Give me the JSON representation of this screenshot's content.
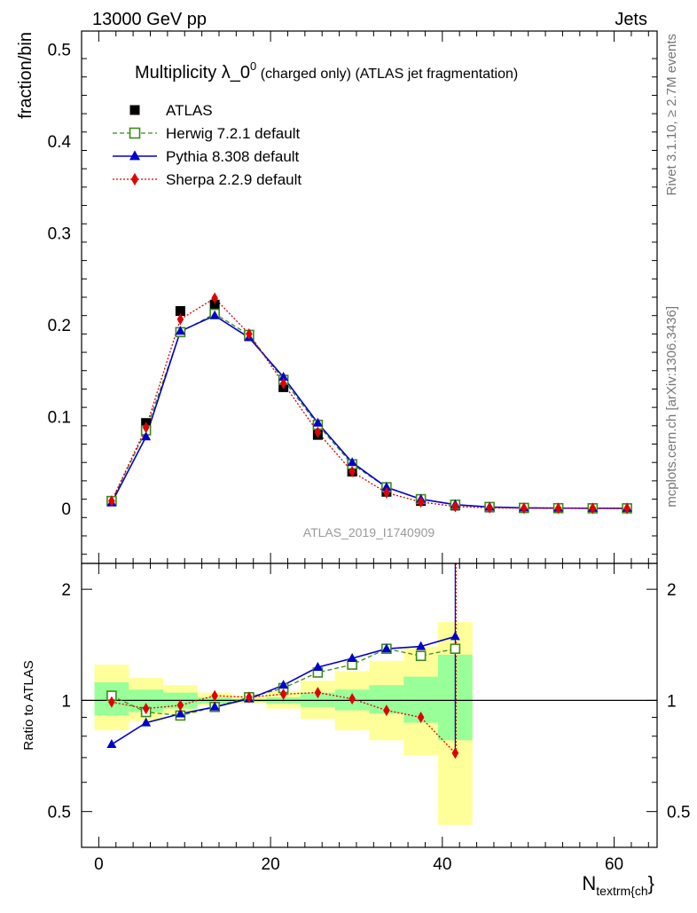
{
  "header": {
    "left": "13000 GeV pp",
    "right": "Jets"
  },
  "title": {
    "main": "Multiplicity λ_0",
    "sup": "0",
    "rest": " (charged only) (ATLAS jet fragmentation)"
  },
  "side_labels": {
    "rivet": "Rivet 3.1.10, ≥ 2.7M events",
    "mcplots": "mcplots.cern.ch [arXiv:1306.3436]"
  },
  "watermark": "ATLAS_2019_I1740909",
  "colors": {
    "atlas": "#000000",
    "herwig": "#3a8a1a",
    "pythia": "#0000cc",
    "sherpa": "#e00000",
    "band_inner": "#99ff99",
    "band_outer": "#ffff99"
  },
  "chart_data": {
    "type": "line",
    "xlabel_main": "N",
    "xlabel_sub": "textrm{ch",
    "xlabel_close": "}",
    "ylabel": "fraction/bin",
    "ratio_ylabel": "Ratio to ATLAS",
    "xlim": [
      -2,
      65
    ],
    "ylim": [
      -0.06,
      0.52
    ],
    "ratio_ylim": [
      0.4,
      2.35
    ],
    "x_ticks": [
      "0",
      "20",
      "40",
      "60"
    ],
    "y_ticks": [
      "0",
      "0.1",
      "0.2",
      "0.3",
      "0.4",
      "0.5"
    ],
    "ratio_ticks": [
      "0.5",
      "1",
      "2"
    ],
    "legend": [
      "ATLAS",
      "Herwig 7.2.1 default",
      "Pythia 8.308 default",
      "Sherpa 2.2.9 default"
    ],
    "bins": [
      [
        -0.5,
        3.5
      ],
      [
        3.5,
        7.5
      ],
      [
        7.5,
        11.5
      ],
      [
        11.5,
        15.5
      ],
      [
        15.5,
        19.5
      ],
      [
        19.5,
        23.5
      ],
      [
        23.5,
        27.5
      ],
      [
        27.5,
        31.5
      ],
      [
        31.5,
        35.5
      ],
      [
        35.5,
        39.5
      ],
      [
        39.5,
        43.5
      ]
    ],
    "x": [
      1.5,
      5.5,
      9.5,
      13.5,
      17.5,
      21.5,
      25.5,
      29.5,
      33.5,
      37.5,
      41.5,
      45.5,
      49.5,
      53.5,
      57.5,
      61.5
    ],
    "series": [
      {
        "name": "ATLAS",
        "values": [
          0.008,
          0.093,
          0.215,
          0.222,
          0.188,
          0.132,
          0.08,
          0.04,
          0.018,
          0.008,
          0.003,
          0.001,
          0.0003,
          0.0001,
          3e-05,
          1e-05
        ]
      },
      {
        "name": "Herwig 7.2.1 default",
        "values": [
          0.008,
          0.085,
          0.192,
          0.212,
          0.189,
          0.14,
          0.091,
          0.048,
          0.023,
          0.01,
          0.004,
          0.0015,
          0.0005,
          0.0002,
          6e-05,
          2e-05
        ]
      },
      {
        "name": "Pythia 8.308 default",
        "values": [
          0.006,
          0.078,
          0.193,
          0.21,
          0.186,
          0.143,
          0.093,
          0.05,
          0.023,
          0.01,
          0.004,
          0.0015,
          0.0005,
          0.0002,
          6e-05,
          2e-05
        ]
      },
      {
        "name": "Sherpa 2.2.9 default",
        "values": [
          0.008,
          0.088,
          0.206,
          0.229,
          0.19,
          0.136,
          0.083,
          0.04,
          0.017,
          0.007,
          0.002,
          0.0005,
          0.0001,
          3e-05,
          1e-05,
          3e-06
        ]
      }
    ],
    "ratio": {
      "x": [
        1.5,
        5.5,
        9.5,
        13.5,
        17.5,
        21.5,
        25.5,
        29.5,
        33.5,
        37.5,
        41.5
      ],
      "herwig": [
        1.03,
        0.93,
        0.91,
        0.96,
        1.02,
        1.08,
        1.19,
        1.25,
        1.38,
        1.32,
        1.38
      ],
      "pythia": [
        0.76,
        0.87,
        0.92,
        0.96,
        1.01,
        1.1,
        1.23,
        1.3,
        1.38,
        1.4,
        1.49
      ],
      "sherpa": [
        0.99,
        0.95,
        0.97,
        1.03,
        1.02,
        1.04,
        1.05,
        1.01,
        0.94,
        0.9,
        0.72
      ],
      "inner_lo": [
        0.91,
        0.93,
        0.95,
        0.98,
        0.99,
        0.98,
        0.96,
        0.94,
        0.92,
        0.87,
        0.78
      ],
      "inner_hi": [
        1.12,
        1.07,
        1.05,
        1.02,
        1.01,
        1.02,
        1.05,
        1.07,
        1.1,
        1.16,
        1.33
      ],
      "outer_lo": [
        0.83,
        0.88,
        0.92,
        0.97,
        0.98,
        0.95,
        0.89,
        0.83,
        0.78,
        0.71,
        0.46
      ],
      "outer_hi": [
        1.25,
        1.15,
        1.1,
        1.05,
        1.03,
        1.06,
        1.13,
        1.2,
        1.28,
        1.4,
        1.63
      ]
    }
  }
}
